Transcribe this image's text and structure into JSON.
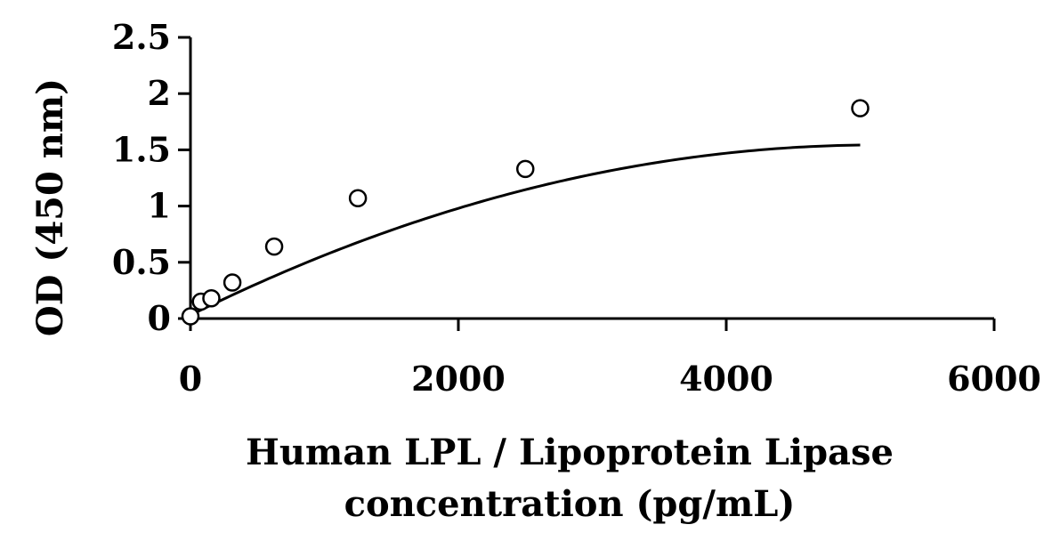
{
  "chart_data": {
    "type": "scatter",
    "title": "",
    "xlabel_lines": [
      "Human LPL / Lipoprotein Lipase",
      "concentration (pg/mL)"
    ],
    "ylabel": "OD (450 nm)",
    "xlim": [
      0,
      6000
    ],
    "ylim": [
      0,
      2.5
    ],
    "x_ticks": [
      0,
      2000,
      4000,
      6000
    ],
    "x_tick_labels": [
      "0",
      "2000",
      "4000",
      "6000"
    ],
    "y_ticks": [
      0,
      0.5,
      1,
      1.5,
      2,
      2.5
    ],
    "y_tick_labels": [
      "0",
      "0.5",
      "1",
      "1.5",
      "2",
      "2.5"
    ],
    "grid": false,
    "legend": "none",
    "series": [
      {
        "marker": "open-circle",
        "x": [
          0,
          78,
          156,
          313,
          625,
          1250,
          2500,
          5000
        ],
        "y": [
          0.02,
          0.15,
          0.18,
          0.32,
          0.64,
          1.07,
          1.33,
          1.87
        ]
      }
    ],
    "fit_curve": {
      "type": "polynomial",
      "x_range": [
        0,
        5000
      ],
      "coefficients": [
        0.03,
        0.00059,
        -5.75e-08
      ]
    }
  }
}
